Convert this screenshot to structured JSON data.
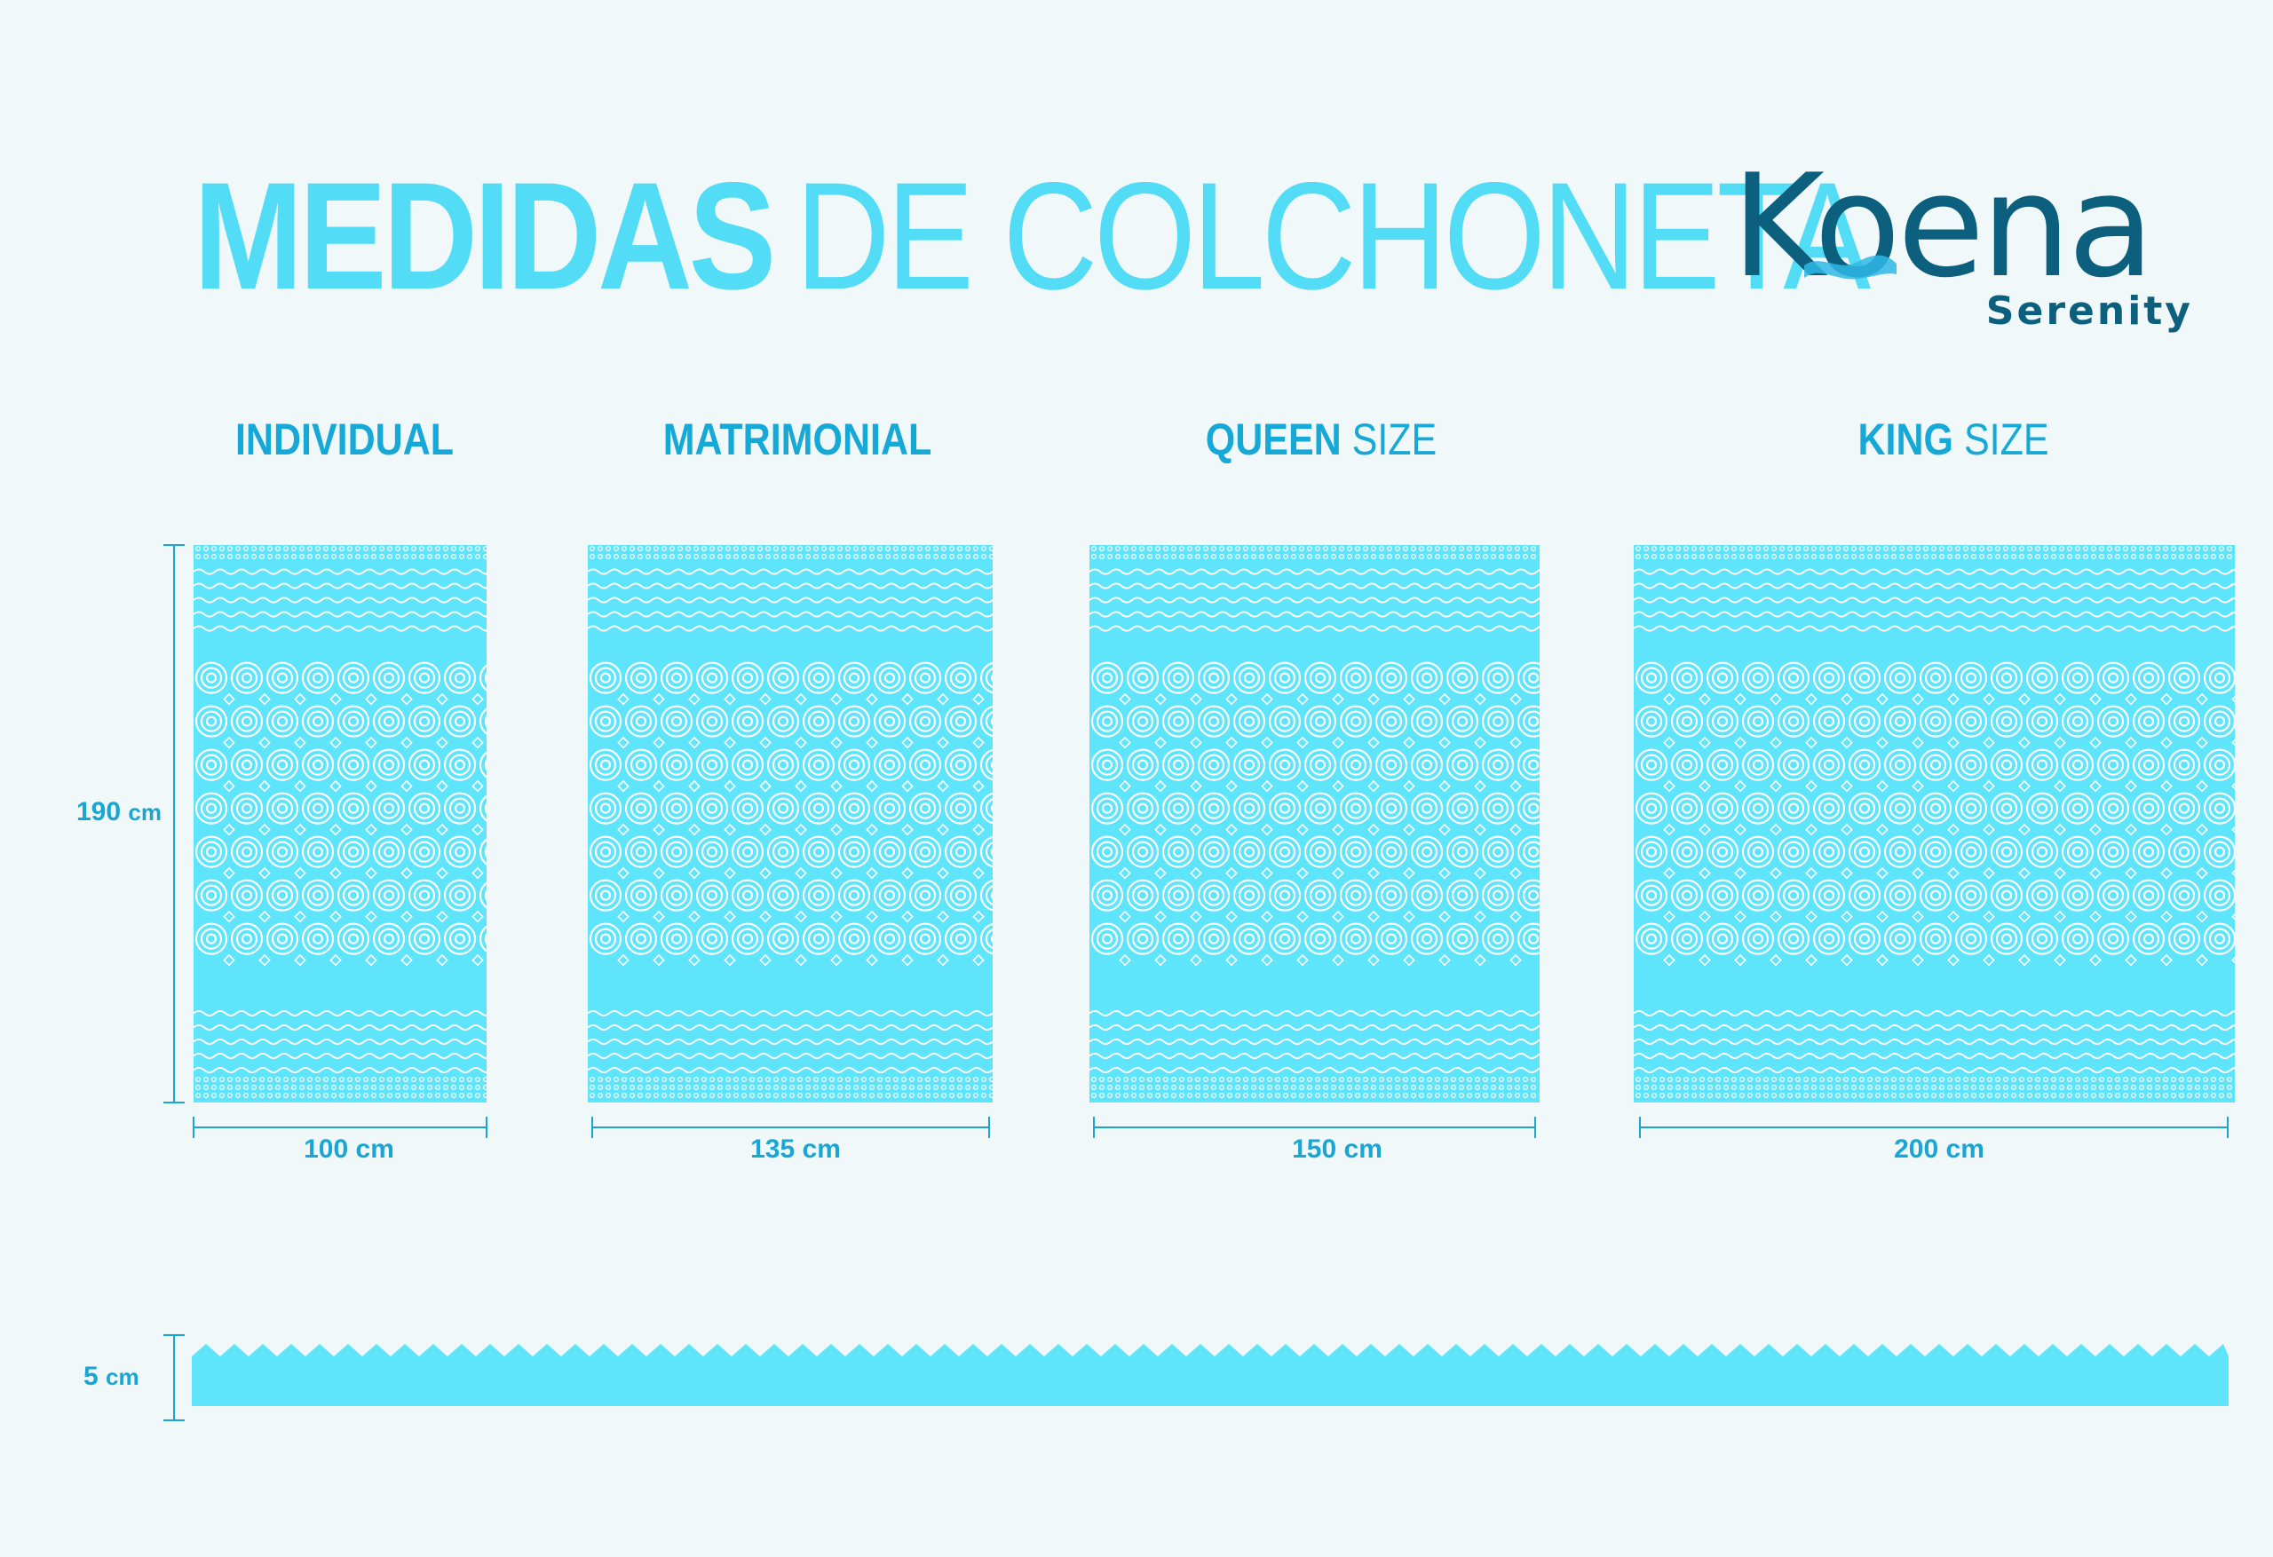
{
  "title": {
    "bold": "MEDIDAS",
    "light": "DE COLCHONETA"
  },
  "logo": {
    "brand": "Koena",
    "sub": "Serenity"
  },
  "sizes": [
    {
      "name_bold": "INDIVIDUAL",
      "name_light": "",
      "width": "100 cm"
    },
    {
      "name_bold": "MATRIMONIAL",
      "name_light": "",
      "width": "135 cm"
    },
    {
      "name_bold": "QUEEN",
      "name_light": "SIZE",
      "width": "150 cm"
    },
    {
      "name_bold": "KING",
      "name_light": "SIZE",
      "width": "200 cm"
    }
  ],
  "length": {
    "value": "190",
    "unit": "cm"
  },
  "thickness": {
    "value": "5",
    "unit": "cm"
  },
  "colors": {
    "background": "#f0f8f9",
    "title_cyan": "#52dcf6",
    "label_blue": "#16a8d6",
    "mattress_fill": "#5ee4fb",
    "pattern_lines": "#ffffff",
    "logo_teal": "#0d5f7e",
    "logo_wave": "#2fb8e6",
    "dimension_line": "#1aa6d4"
  }
}
